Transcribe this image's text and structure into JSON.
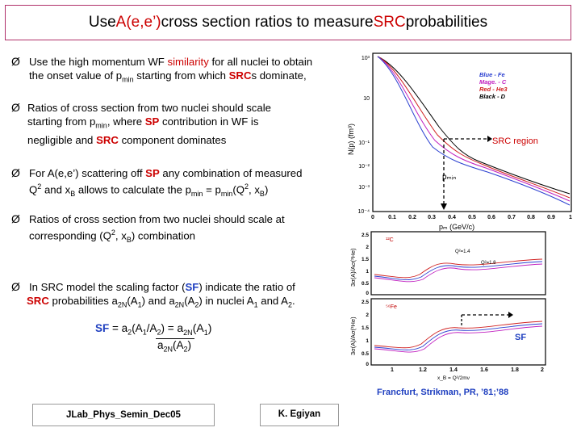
{
  "title": {
    "pre": "Use ",
    "red": "A(e,e’)",
    "mid": " cross section ratios to measure ",
    "red2": "SRC",
    "post": " probabilities"
  },
  "bullet_symbol": "Ø",
  "bullets": {
    "b1": {
      "l1a": "Use the high momentum WF ",
      "l1red": "similarity",
      "l1b": " for all nuclei to obtain",
      "l2a": "the onset value of p",
      "l2sub": "min",
      "l2b": " starting from which ",
      "l2src": "SRC",
      "l2c": "s dominate,"
    },
    "b2": {
      "l1": "Ratios of cross section from two nuclei should scale",
      "l2a": "starting from p",
      "l2sub": "min",
      "l2b": ", where ",
      "l2sp": "SP",
      "l2c": " contribution in WF is",
      "l3a": "negligible and ",
      "l3src": "SRC",
      "l3b": " component dominates"
    },
    "b3": {
      "l1a": "For A(e,e’) scattering off ",
      "l1sp": "SP",
      "l1b": " any combination of measured",
      "l2a": "Q",
      "l2sup": "2",
      "l2b": " and x",
      "l2sub": "B",
      "l2c": " allows to calculate the p",
      "l2sub2": "min",
      "l2d": " = p",
      "l2sub3": "min",
      "l2e": "(Q",
      "l2sup2": "2",
      "l2f": ", x",
      "l2sub4": "B",
      "l2g": ")"
    },
    "b4": {
      "l1": "Ratios of cross section from two nuclei should scale at",
      "l2a": "corresponding  (Q",
      "l2sup": "2",
      "l2b": ", x",
      "l2sub": "B",
      "l2c": ") combination"
    },
    "b5": {
      "l1a": "In SRC model the scaling factor (",
      "l1sf": "SF",
      "l1b": ") indicate the ratio of",
      "l2src": "SRC",
      "l2a": "  probabilities a",
      "l2sub": "2N",
      "l2b": "(A",
      "l2sub1": "1",
      "l2c": ") and a",
      "l2sub2": "2N",
      "l2d": "(A",
      "l2sub3": "2",
      "l2e": ") in nuclei A",
      "l2sub4": "1",
      "l2f": " and A",
      "l2sub5": "2",
      "l2g": "."
    }
  },
  "formula": {
    "sf": "SF",
    "eq": " = a",
    "sub2": "2",
    "args": "(A",
    "s1": "1",
    "slash": "/A",
    "s2": "2",
    "close": ") = ",
    "numa": "a",
    "numsub": "2N",
    "numb": "(A",
    "nums1": "1",
    "numc": ")",
    "dena": "a",
    "densub": "2N",
    "denb": "(A",
    "dens2": "2",
    "denc": ")"
  },
  "top_plot": {
    "legend": [
      "Blue - Fe",
      "Mage. - C",
      "Red - He3",
      "Black - D"
    ],
    "legend_colors": [
      "#2a3fd0",
      "#c020c0",
      "#d02020",
      "#000000"
    ],
    "ylabel": "N(p) (fm³)",
    "yticks": [
      "10³",
      "10",
      "10⁻¹",
      "10⁻²",
      "10⁻³",
      "10⁻⁴"
    ],
    "xticks": [
      "0",
      "0.1",
      "0.2",
      "0.3",
      "0.4",
      "0.5",
      "0.6",
      "0.7",
      "0.8",
      "0.9",
      "1"
    ],
    "xlabel": "pₘ (GeV/c)",
    "src_label": "SRC region",
    "pmin_label": "pₘᵢₙ"
  },
  "mid_plot": {
    "panel": "¹²C",
    "q2a": "Q²=1.4",
    "q2b": "Q²=1.8",
    "ylabel": "3σ(A)/Aσ(³He)"
  },
  "bot_plot": {
    "panel": "⁵⁶Fe",
    "ylabel": "3σ(A)/Aσ(³He)",
    "xticks": [
      "1",
      "1.2",
      "1.4",
      "1.6",
      "1.8",
      "2"
    ],
    "xlabel": "x_B = Q²/2mν",
    "sf_label": "SF"
  },
  "citation": "Francfurt, Strikman, PR, ’81;’88",
  "footer": {
    "left": "JLab_Phys_Semin_Dec05",
    "right": "K. Egiyan"
  }
}
